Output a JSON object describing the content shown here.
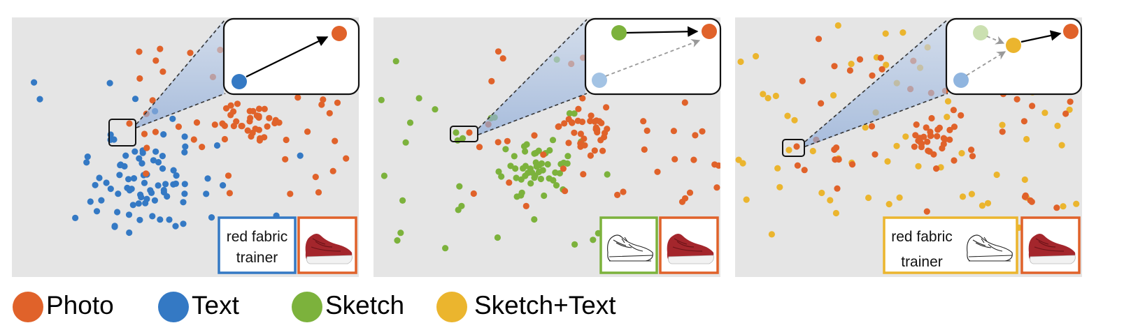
{
  "legend": [
    {
      "key": "photo",
      "label": "Photo",
      "color": "#e0622a"
    },
    {
      "key": "text",
      "label": "Text",
      "color": "#3479c4"
    },
    {
      "key": "sketch",
      "label": "Sketch",
      "color": "#7cb23c"
    },
    {
      "key": "sketch_text",
      "label": "Sketch+Text",
      "color": "#ebb52e"
    }
  ],
  "panels": [
    {
      "id": "text-to-photo",
      "query_modalities": [
        "text"
      ],
      "query_text": [
        "red fabric",
        "trainer"
      ],
      "query_sketch": false,
      "query_text_color": "#3479c4",
      "target_image": "red-fabric-trainer-photo",
      "inset_arrows": [
        {
          "from": "text",
          "to": "photo",
          "style": "solid"
        }
      ]
    },
    {
      "id": "sketch-to-photo",
      "query_modalities": [
        "sketch"
      ],
      "query_text": [],
      "query_sketch": true,
      "target_image": "red-fabric-trainer-photo",
      "inset_arrows": [
        {
          "from": "sketch",
          "to": "photo",
          "style": "solid"
        },
        {
          "from": "text",
          "to": "photo",
          "style": "dashed"
        }
      ]
    },
    {
      "id": "sketch-text-to-photo",
      "query_modalities": [
        "sketch",
        "text"
      ],
      "query_text": [
        "red fabric",
        "trainer"
      ],
      "query_sketch": true,
      "query_text_color": "#ebb52e",
      "target_image": "red-fabric-trainer-photo",
      "inset_arrows": [
        {
          "from": "sketch",
          "to": "sketch_text",
          "style": "dashed"
        },
        {
          "from": "text",
          "to": "sketch_text",
          "style": "dashed"
        },
        {
          "from": "sketch_text",
          "to": "photo",
          "style": "solid"
        }
      ]
    }
  ],
  "colors": {
    "panel_background": "#e5e5e5",
    "photo": "#e0622a",
    "text": "#3479c4",
    "sketch": "#7cb23c",
    "sketch_text": "#ebb52e"
  }
}
